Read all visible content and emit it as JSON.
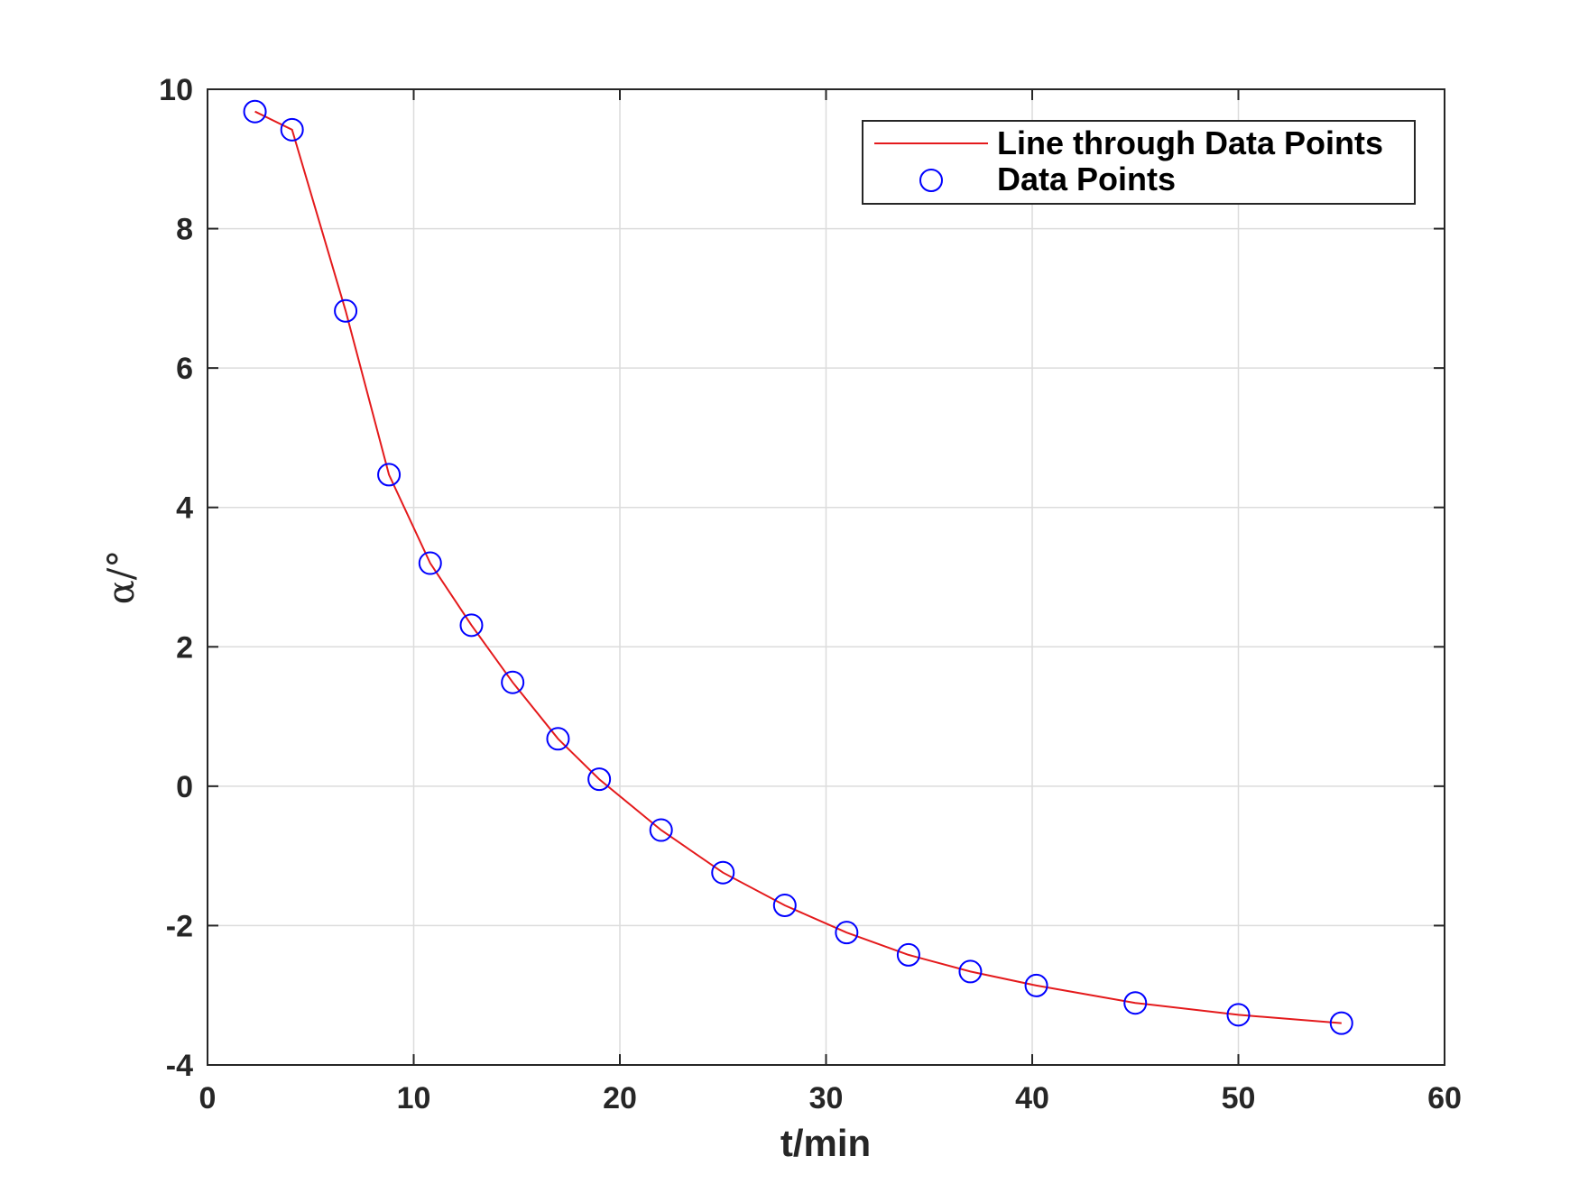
{
  "chart_data": {
    "type": "line",
    "xlabel": "t/min",
    "ylabel": "α/°",
    "xlim": [
      0,
      60
    ],
    "ylim": [
      -4,
      10
    ],
    "x_ticks": [
      0,
      10,
      20,
      30,
      40,
      50,
      60
    ],
    "y_ticks": [
      -4,
      -2,
      0,
      2,
      4,
      6,
      8,
      10
    ],
    "x_tick_labels": [
      "0",
      "10",
      "20",
      "30",
      "40",
      "50",
      "60"
    ],
    "y_tick_labels": [
      "-4",
      "-2",
      "0",
      "2",
      "4",
      "6",
      "8",
      "10"
    ],
    "grid": true,
    "legend_position": "top-right",
    "series": [
      {
        "name": "Line through Data Points",
        "style": "line",
        "color": "#e41a1c",
        "x": [
          2.3,
          4.1,
          6.7,
          8.8,
          10.8,
          12.8,
          14.8,
          17.0,
          19.0,
          22.0,
          25.0,
          28.0,
          31.0,
          34.0,
          37.0,
          40.2,
          45.0,
          50.0,
          55.0
        ],
        "y": [
          9.68,
          9.42,
          6.82,
          4.47,
          3.2,
          2.31,
          1.49,
          0.68,
          0.1,
          -0.63,
          -1.24,
          -1.71,
          -2.1,
          -2.42,
          -2.66,
          -2.86,
          -3.11,
          -3.28,
          -3.4
        ]
      },
      {
        "name": "Data Points",
        "style": "markers",
        "marker": "circle",
        "color": "#0000ff",
        "x": [
          2.3,
          4.1,
          6.7,
          8.8,
          10.8,
          12.8,
          14.8,
          17.0,
          19.0,
          22.0,
          25.0,
          28.0,
          31.0,
          34.0,
          37.0,
          40.2,
          45.0,
          50.0,
          55.0
        ],
        "y": [
          9.68,
          9.42,
          6.82,
          4.47,
          3.2,
          2.31,
          1.49,
          0.68,
          0.1,
          -0.63,
          -1.24,
          -1.71,
          -2.1,
          -2.42,
          -2.66,
          -2.86,
          -3.11,
          -3.28,
          -3.4
        ]
      }
    ]
  }
}
